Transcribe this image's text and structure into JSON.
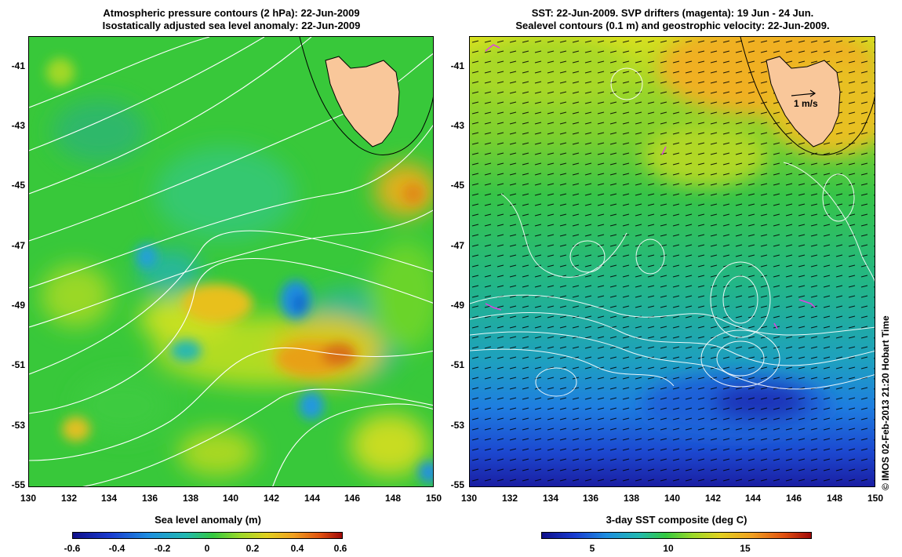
{
  "left_panel": {
    "title_line1": "Atmospheric pressure contours (2 hPa): 22-Jun-2009",
    "title_line2": "Isostatically adjusted sea level anomaly: 22-Jun-2009",
    "colorbar_title": "Sea level anomaly (m)",
    "colorbar_ticks": [
      "-0.6",
      "-0.4",
      "-0.2",
      "0",
      "0.2",
      "0.4",
      "0.6"
    ]
  },
  "right_panel": {
    "title_line1": "SST: 22-Jun-2009. SVP drifters (magenta): 19 Jun - 24 Jun.",
    "title_line2": "Sealevel contours (0.1 m) and geostrophic velocity: 22-Jun-2009.",
    "velocity_scale_label": "1 m/s",
    "colorbar_title": "3-day SST composite (deg C)",
    "colorbar_ticks": [
      "5",
      "10",
      "15"
    ]
  },
  "axes": {
    "lat_ticks": [
      "-41",
      "-43",
      "-45",
      "-47",
      "-49",
      "-51",
      "-53",
      "-55"
    ],
    "lon_ticks": [
      "130",
      "132",
      "134",
      "136",
      "138",
      "140",
      "142",
      "144",
      "146",
      "148",
      "150"
    ]
  },
  "credit": "© IMOS 02-Feb-2013 21:20 Hobart Time",
  "colors": {
    "land": "#f9c79a",
    "ocean_green": "#33cc33",
    "warm_anomaly": "#f0a020",
    "cold_anomaly": "#2090e0",
    "drifter": "#e040e0",
    "contour": "#ffffff"
  }
}
